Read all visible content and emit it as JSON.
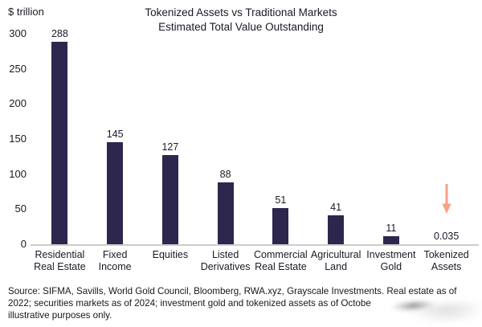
{
  "chart": {
    "unit_label": "$ trillion",
    "title_line1": "Tokenized Assets vs Traditional Markets",
    "title_line2": "Estimated Total Value Outstanding"
  },
  "chart_data": {
    "type": "bar",
    "title": "Tokenized Assets vs Traditional Markets",
    "subtitle": "Estimated Total Value Outstanding",
    "ylabel": "$ trillion",
    "xlabel": "",
    "ylim": [
      0,
      300
    ],
    "yticks": [
      300,
      250,
      200,
      150,
      100,
      50,
      0
    ],
    "grid": false,
    "legend_position": "none",
    "bar_color": "#2d264d",
    "categories": [
      "Residential Real Estate",
      "Fixed Income",
      "Equities",
      "Listed Derivatives",
      "Commercial Real Estate",
      "Agricultural Land",
      "Investment Gold",
      "Tokenized Assets"
    ],
    "category_lines": [
      [
        "Residential",
        "Real Estate"
      ],
      [
        "Fixed",
        "Income"
      ],
      [
        "Equities"
      ],
      [
        "Listed",
        "Derivatives"
      ],
      [
        "Commercial",
        "Real Estate"
      ],
      [
        "Agricultural",
        "Land"
      ],
      [
        "Investment",
        "Gold"
      ],
      [
        "Tokenized",
        "Assets"
      ]
    ],
    "values": [
      288,
      145,
      127,
      88,
      51,
      41,
      11,
      0.035
    ],
    "value_labels": [
      "288",
      "145",
      "127",
      "88",
      "51",
      "41",
      "11",
      "0.035"
    ],
    "annotation": {
      "shape": "down-arrow",
      "target_category": "Tokenized Assets",
      "target_index": 7,
      "color": "#f4a287"
    }
  },
  "source": {
    "line1": "Source: SIFMA, Savills, World Gold Council, Bloomberg, RWA.xyz, Grayscale Investments. Real estate as of",
    "line2": "2022; securities markets as of 2024; investment gold and tokenized assets as of Octobe",
    "line3": "illustrative purposes only."
  }
}
